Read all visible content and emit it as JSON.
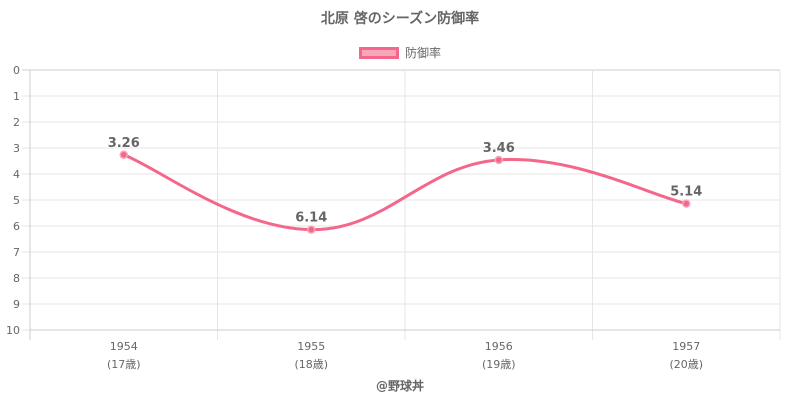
{
  "chart_data": {
    "type": "line",
    "title": "北原 啓のシーズン防御率",
    "categories": [
      "1954",
      "1955",
      "1956",
      "1957"
    ],
    "category_sublabels": [
      "(17歳)",
      "(18歳)",
      "(19歳)",
      "(20歳)"
    ],
    "series": [
      {
        "name": "防御率",
        "values": [
          3.26,
          6.14,
          3.46,
          5.14
        ],
        "labels": [
          "3.26",
          "6.14",
          "3.46",
          "5.14"
        ],
        "color": "#f4678a"
      }
    ],
    "ylim": [
      0,
      10
    ],
    "y_reversed": true,
    "y_ticks": [
      "0",
      "1",
      "2",
      "3",
      "4",
      "5",
      "6",
      "7",
      "8",
      "9",
      "10"
    ],
    "grid": true,
    "legend": "top-center",
    "xlabel": "",
    "ylabel": ""
  },
  "watermark": "@野球丼"
}
